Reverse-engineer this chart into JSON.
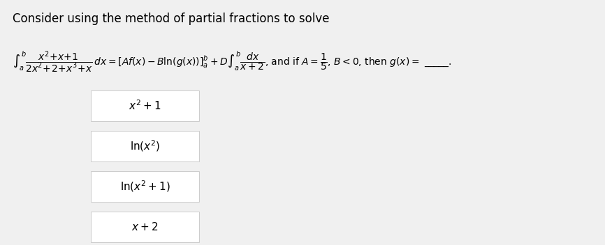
{
  "title": "Consider using the method of partial fractions to solve",
  "bg_color": "#f0f0f0",
  "box_bg_color": "#ffffff",
  "box_border_color": "#cccccc",
  "text_color": "#000000",
  "title_fontsize": 12,
  "eq_fontsize": 10,
  "option_fontsize": 11,
  "options": [
    "$x^2+1$",
    "$\\mathrm{ln}\\left(x^2\\right)$",
    "$\\mathrm{ln}\\left(x^2+1\\right)$",
    "$x+2$"
  ]
}
